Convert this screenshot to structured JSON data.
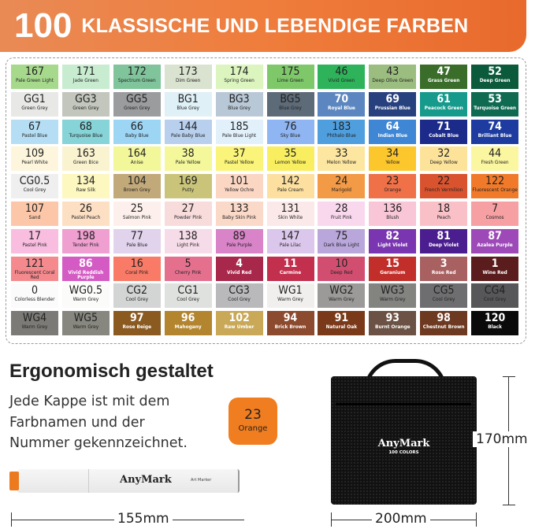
{
  "header": {
    "number": "100",
    "title": "KLASSISCHE UND LEBENDIGE FARBEN",
    "color": "#ef7d3c"
  },
  "colors": [
    [
      [
        "167",
        "Pale Green Light",
        "#a6d98c",
        0
      ],
      [
        "171",
        "Jade Green",
        "#c8ecd0",
        0
      ],
      [
        "172",
        "Spectrum Green",
        "#7fc49a",
        0
      ],
      [
        "173",
        "Dim Green",
        "#d9e3cf",
        0
      ],
      [
        "174",
        "Spring Green",
        "#dcf5bf",
        0
      ],
      [
        "175",
        "Lime Green",
        "#7ec86a",
        0
      ],
      [
        "46",
        "Vivid Green",
        "#2eb35a",
        0
      ],
      [
        "43",
        "Deep Olive Green",
        "#9bbd7f",
        0
      ],
      [
        "47",
        "Grass Green",
        "#3a6d2a",
        1
      ],
      [
        "52",
        "Deep Green",
        "#0c5a3c",
        1
      ]
    ],
    [
      [
        "GG1",
        "Green Grey",
        "#e8e8e6",
        0
      ],
      [
        "GG3",
        "Green Grey",
        "#c3c6bd",
        0
      ],
      [
        "GG5",
        "Green Grey",
        "#9a9c9e",
        0
      ],
      [
        "BG1",
        "Blue Grey",
        "#dff0f7",
        0
      ],
      [
        "BG3",
        "Blue Grey",
        "#b9c8d6",
        0
      ],
      [
        "BG5",
        "Blue Grey",
        "#5d6a78",
        0
      ],
      [
        "70",
        "Royal Blue",
        "#5b86c0",
        1
      ],
      [
        "69",
        "Prussian Blue",
        "#27417e",
        1
      ],
      [
        "61",
        "Peacock Green",
        "#159a8c",
        1
      ],
      [
        "53",
        "Turquoise Green",
        "#0f6a52",
        1
      ]
    ],
    [
      [
        "67",
        "Pastel Blue",
        "#b5def5",
        0
      ],
      [
        "68",
        "Turquoise Blue",
        "#86d3d8",
        0
      ],
      [
        "66",
        "Baby Blue",
        "#9dd6f5",
        0
      ],
      [
        "144",
        "Pale Baby Blue",
        "#b8d0ee",
        0
      ],
      [
        "185",
        "Pale Blue Light",
        "#e2f0fb",
        0
      ],
      [
        "76",
        "Sky Blue",
        "#8fb6f2",
        0
      ],
      [
        "183",
        "Phthalo Blue",
        "#4f9ede",
        0
      ],
      [
        "64",
        "Indian Blue",
        "#3f86d4",
        1
      ],
      [
        "71",
        "Cobalt Blue",
        "#1c2a8a",
        1
      ],
      [
        "74",
        "Brilliant Blue",
        "#1e3ca0",
        1
      ]
    ],
    [
      [
        "109",
        "Pearl White",
        "#fdf6dc",
        0
      ],
      [
        "163",
        "Green Bice",
        "#faf3d0",
        0
      ],
      [
        "164",
        "Anise",
        "#f2f79a",
        0
      ],
      [
        "38",
        "Pale Yellow",
        "#f4f89a",
        0
      ],
      [
        "37",
        "Pastel Yellow",
        "#fbf47a",
        0
      ],
      [
        "35",
        "Lemon Yellow",
        "#f8ee60",
        0
      ],
      [
        "33",
        "Melon Yellow",
        "#fde6a0",
        0
      ],
      [
        "34",
        "Yellow",
        "#fcc72c",
        0
      ],
      [
        "32",
        "Deep Yellow",
        "#fde39a",
        0
      ],
      [
        "44",
        "Fresh Green",
        "#fbf6a0",
        0
      ]
    ],
    [
      [
        "CG0.5",
        "Cool Grey",
        "#efefef",
        0
      ],
      [
        "134",
        "Raw Silk",
        "#fdf7c0",
        0
      ],
      [
        "104",
        "Brown Grey",
        "#c2a97a",
        0
      ],
      [
        "169",
        "Putty",
        "#c9c479",
        0
      ],
      [
        "101",
        "Yellow Ochre",
        "#fbd7c3",
        0
      ],
      [
        "142",
        "Pale Cream",
        "#fde0a0",
        0
      ],
      [
        "24",
        "Marigold",
        "#f39a47",
        0
      ],
      [
        "23",
        "Orange",
        "#f07048",
        0
      ],
      [
        "22",
        "French Vermilion",
        "#d9532f",
        0
      ],
      [
        "122",
        "Fluorescent Orange",
        "#f07a2a",
        0
      ]
    ],
    [
      [
        "107",
        "Sand",
        "#fbc7a8",
        0
      ],
      [
        "26",
        "Pastel Peach",
        "#fde0c4",
        0
      ],
      [
        "25",
        "Salmon Pink",
        "#fdf0ec",
        0
      ],
      [
        "27",
        "Powder Pink",
        "#f8dcdc",
        0
      ],
      [
        "133",
        "Baby Skin Pink",
        "#fbd9c9",
        0
      ],
      [
        "131",
        "Skin White",
        "#fbe8e8",
        0
      ],
      [
        "28",
        "Fruit Pink",
        "#f9d8ee",
        0
      ],
      [
        "136",
        "Blush",
        "#f8c6d6",
        0
      ],
      [
        "18",
        "Peach",
        "#f9c0c8",
        0
      ],
      [
        "7",
        "Cosmos",
        "#f7a0a4",
        0
      ]
    ],
    [
      [
        "17",
        "Pastel Pink",
        "#f9bde0",
        0
      ],
      [
        "198",
        "Tender Pink",
        "#ef9fd0",
        0
      ],
      [
        "77",
        "Pale Blue",
        "#e1d3ec",
        0
      ],
      [
        "138",
        "Light Pink",
        "#f6dbe8",
        0
      ],
      [
        "89",
        "Pale Purple",
        "#d983c8",
        0
      ],
      [
        "147",
        "Pale Lilac",
        "#dcc7ec",
        0
      ],
      [
        "75",
        "Dark Blue Light",
        "#b9a7dc",
        0
      ],
      [
        "82",
        "Light Violet",
        "#7a35b0",
        1
      ],
      [
        "81",
        "Deep Violet",
        "#4b1e8f",
        1
      ],
      [
        "87",
        "Azalea Purple",
        "#9d4ab8",
        1
      ]
    ],
    [
      [
        "121",
        "Fluorescent Coral Red",
        "#f48a8e",
        0
      ],
      [
        "86",
        "Vivid Reddish Purple",
        "#d45bc4",
        1
      ],
      [
        "16",
        "Coral Pink",
        "#f97a66",
        0
      ],
      [
        "5",
        "Cherry Pink",
        "#e5708e",
        0
      ],
      [
        "4",
        "Vivid Red",
        "#a7284b",
        1
      ],
      [
        "11",
        "Carmine",
        "#c2304e",
        1
      ],
      [
        "10",
        "Deep Red",
        "#d24e70",
        0
      ],
      [
        "15",
        "Geranium",
        "#c22e2a",
        1
      ],
      [
        "3",
        "Rose Red",
        "#a86060",
        1
      ],
      [
        "1",
        "Wine Red",
        "#5a1c1c",
        1
      ]
    ],
    [
      [
        "0",
        "Colorless Blender",
        "#fbfbfb",
        0
      ],
      [
        "WG0.5",
        "Warm Grey",
        "#fbfbfa",
        0
      ],
      [
        "CG2",
        "Cool Grey",
        "#d3d4d4",
        0
      ],
      [
        "CG1",
        "Cool Grey",
        "#dfe1df",
        0
      ],
      [
        "CG3",
        "Cool Grey",
        "#b9b9bb",
        0
      ],
      [
        "WG1",
        "Warm Grey",
        "#f0efed",
        0
      ],
      [
        "WG2",
        "Warm Grey",
        "#9c9a98",
        0
      ],
      [
        "WG3",
        "Warm Grey",
        "#838380",
        0
      ],
      [
        "CG5",
        "Cool Grey",
        "#6e6e70",
        0
      ],
      [
        "CG4",
        "Cool Grey",
        "#575759",
        0
      ]
    ],
    [
      [
        "WG4",
        "Warm Grey",
        "#7b7a76",
        0
      ],
      [
        "WG5",
        "Warm Grey",
        "#87877f",
        0
      ],
      [
        "97",
        "Rose Beige",
        "#8a5a20",
        1
      ],
      [
        "96",
        "Mahogany",
        "#b3852e",
        1
      ],
      [
        "102",
        "Raw Umber",
        "#c9a858",
        1
      ],
      [
        "94",
        "Brick Brown",
        "#8c4a2e",
        1
      ],
      [
        "91",
        "Natural Oak",
        "#7a3a1a",
        1
      ],
      [
        "93",
        "Burnt Orange",
        "#6b5244",
        1
      ],
      [
        "98",
        "Chestnut Brown",
        "#6d3920",
        1
      ],
      [
        "120",
        "Black",
        "#0a0a0a",
        1
      ]
    ]
  ],
  "ergonomic": {
    "title": "Ergonomisch gestaltet",
    "lines": [
      "Jede Kappe ist mit dem",
      "Farbnamen und der",
      "Nummer gekennzeichnet."
    ],
    "cap_code": "23",
    "cap_name": "Orange",
    "cap_color": "#f07d1f"
  },
  "marker": {
    "brand": "AnyMark",
    "label": "Art Marker",
    "length": "155mm"
  },
  "bag": {
    "brand": "AnyMark",
    "subtitle": "100 COLORS",
    "height": "170mm",
    "width": "200mm"
  }
}
